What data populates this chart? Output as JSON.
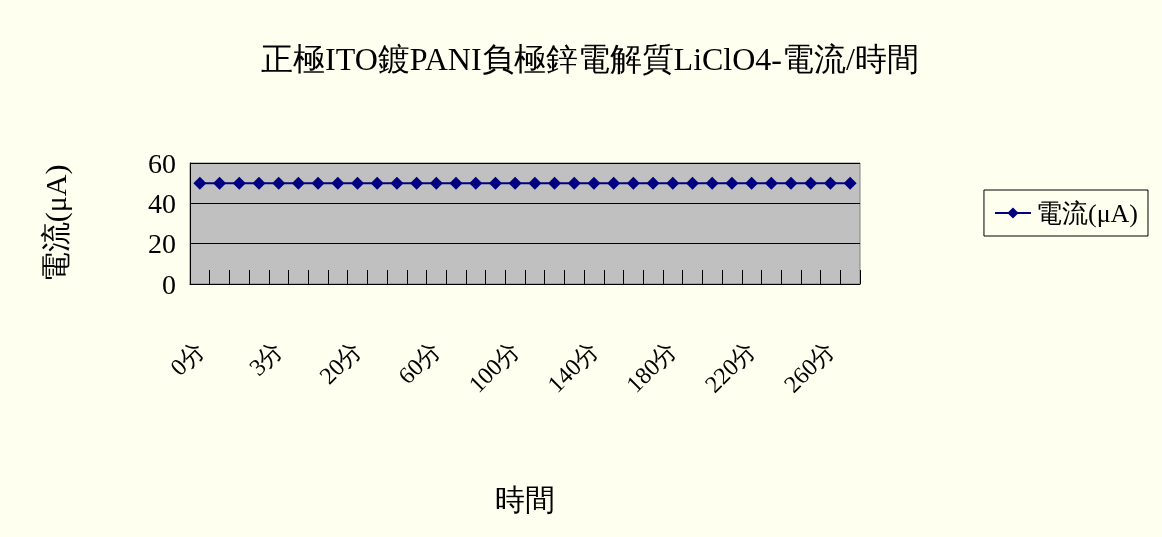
{
  "chart_data": {
    "type": "line",
    "title": "正極ITO鍍PANI負極鋅電解質LiClO4-電流/時間",
    "xlabel": "時間",
    "ylabel": "電流(μA)",
    "categories": [
      "0分",
      null,
      null,
      null,
      "3分",
      null,
      null,
      null,
      "20分",
      null,
      null,
      null,
      "60分",
      null,
      null,
      null,
      "100分",
      null,
      null,
      null,
      "140分",
      null,
      null,
      null,
      "180分",
      null,
      null,
      null,
      "220分",
      null,
      null,
      null,
      "260分",
      null
    ],
    "series": [
      {
        "name": "電流(μA)",
        "color": "#000080",
        "values": [
          50,
          50,
          50,
          50,
          50,
          50,
          50,
          50,
          50,
          50,
          50,
          50,
          50,
          50,
          50,
          50,
          50,
          50,
          50,
          50,
          50,
          50,
          50,
          50,
          50,
          50,
          50,
          50,
          50,
          50,
          50,
          50,
          50,
          50
        ]
      }
    ],
    "ylim": [
      0,
      60
    ],
    "yticks": [
      0,
      20,
      40,
      60
    ],
    "grid": "y",
    "legend": "right",
    "marker": "diamond"
  }
}
